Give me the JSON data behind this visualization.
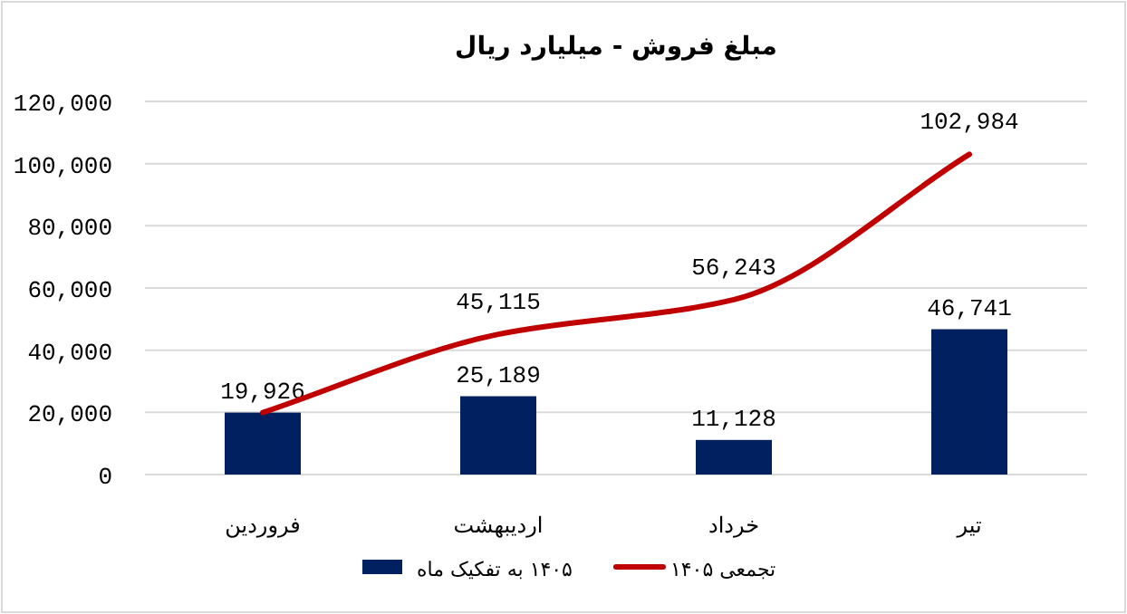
{
  "chart_data": {
    "type": "bar",
    "title": "مبلغ فروش - میلیارد ریال",
    "categories": [
      "فروردین",
      "اردیبهشت",
      "خرداد",
      "تیر"
    ],
    "series": [
      {
        "name": "۱۴۰۵ به تفکیک ماه",
        "color": "#002060",
        "values": [
          19926,
          25189,
          11128,
          46741
        ],
        "value_labels": [
          "19,926",
          "25,189",
          "11,128",
          "46,741"
        ]
      },
      {
        "name": "تجمعی ۱۴۰۵",
        "type": "line",
        "color": "#c00000",
        "values": [
          19926,
          45115,
          56243,
          102984
        ],
        "value_labels": [
          null,
          "45,115",
          "56,243",
          "102,984"
        ]
      }
    ],
    "ylim": [
      0,
      120000
    ],
    "yticks": [
      {
        "value": 0,
        "label": "0"
      },
      {
        "value": 20000,
        "label": "20,000"
      },
      {
        "value": 40000,
        "label": "40,000"
      },
      {
        "value": 60000,
        "label": "60,000"
      },
      {
        "value": 80000,
        "label": "80,000"
      },
      {
        "value": 100000,
        "label": "100,000"
      },
      {
        "value": 120000,
        "label": "120,000"
      }
    ],
    "grid": "y",
    "legend": "bottom",
    "marker": "none",
    "line_style": "solid"
  }
}
